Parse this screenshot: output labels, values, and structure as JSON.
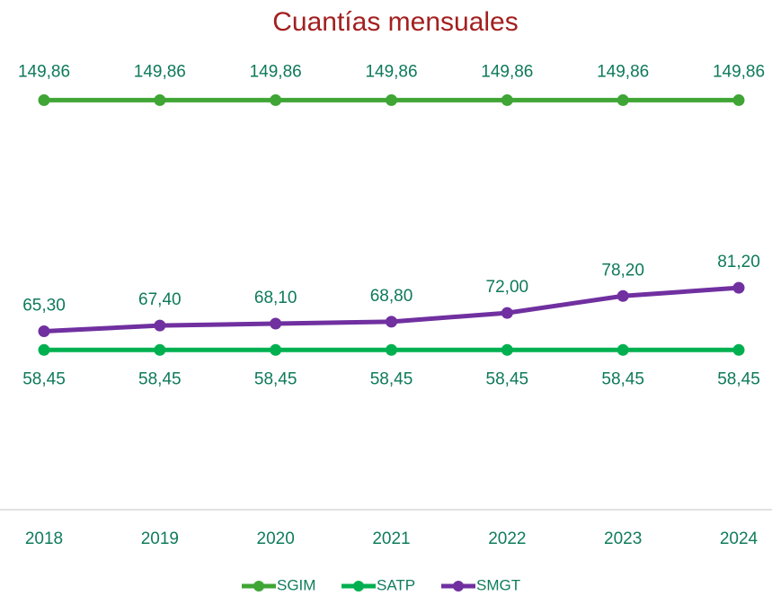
{
  "chart_data": {
    "type": "line",
    "title": "Cuantías mensuales",
    "categories": [
      "2018",
      "2019",
      "2020",
      "2021",
      "2022",
      "2023",
      "2024"
    ],
    "ylim": [
      0,
      160
    ],
    "legend": "bottom",
    "series": [
      {
        "name": "SGIM",
        "color": "#3fa535",
        "values": [
          149.86,
          149.86,
          149.86,
          149.86,
          149.86,
          149.86,
          149.86
        ],
        "value_labels": [
          "149,86",
          "149,86",
          "149,86",
          "149,86",
          "149,86",
          "149,86",
          "149,86"
        ]
      },
      {
        "name": "SATP",
        "color": "#00b050",
        "values": [
          58.45,
          58.45,
          58.45,
          58.45,
          58.45,
          58.45,
          58.45
        ],
        "value_labels": [
          "58,45",
          "58,45",
          "58,45",
          "58,45",
          "58,45",
          "58,45",
          "58,45"
        ]
      },
      {
        "name": "SMGT",
        "color": "#7030a0",
        "values": [
          65.3,
          67.4,
          68.1,
          68.8,
          72.0,
          78.2,
          81.2
        ],
        "value_labels": [
          "65,30",
          "67,40",
          "68,10",
          "68,80",
          "72,00",
          "78,20",
          "81,20"
        ]
      }
    ]
  }
}
